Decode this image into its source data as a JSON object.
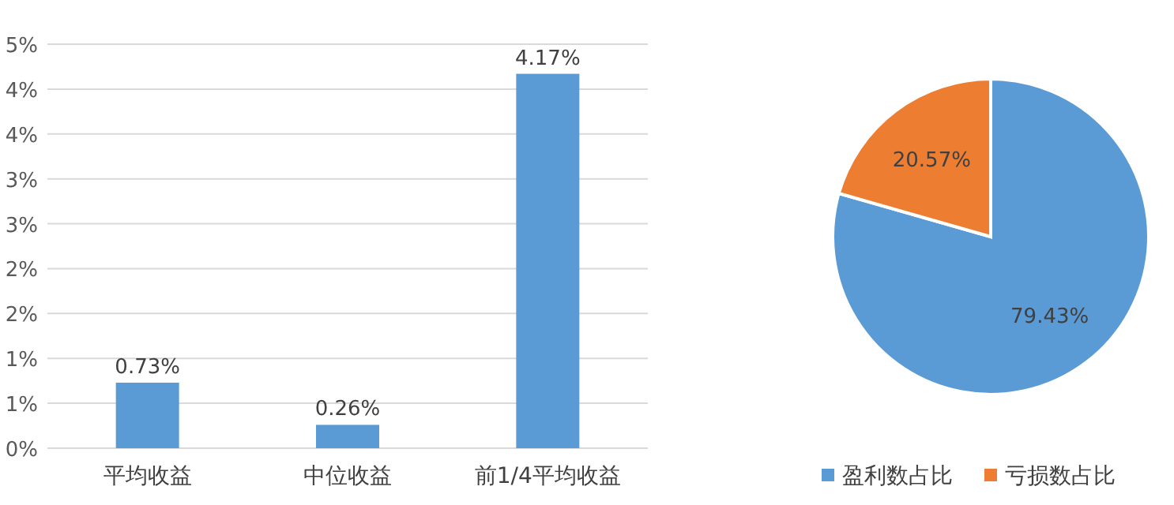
{
  "chart_data": [
    {
      "type": "bar",
      "categories": [
        "平均收益",
        "中位收益",
        "前1/4平均收益"
      ],
      "values": [
        0.73,
        0.26,
        4.17
      ],
      "color": "#5b9bd5",
      "value_labels": [
        "0.73%",
        "0.26%",
        "4.17%"
      ],
      "ylim": [
        0,
        4.5
      ],
      "yticks": [
        {
          "value": 0,
          "label": "0%"
        },
        {
          "value": 0.5,
          "label": "1%"
        },
        {
          "value": 1,
          "label": "1%"
        },
        {
          "value": 1.5,
          "label": "2%"
        },
        {
          "value": 2,
          "label": "2%"
        },
        {
          "value": 2.5,
          "label": "3%"
        },
        {
          "value": 3,
          "label": "3%"
        },
        {
          "value": 3.5,
          "label": "4%"
        },
        {
          "value": 4,
          "label": "4%"
        },
        {
          "value": 4.5,
          "label": "5%"
        }
      ],
      "grid": "y"
    },
    {
      "type": "pie",
      "categories": [
        "盈利数占比",
        "亏损数占比"
      ],
      "values": [
        79.43,
        20.57
      ],
      "colors": [
        "#5b9bd5",
        "#ed7d31"
      ],
      "value_labels": [
        "79.43%",
        "20.57%"
      ],
      "legend": "bottom"
    }
  ]
}
